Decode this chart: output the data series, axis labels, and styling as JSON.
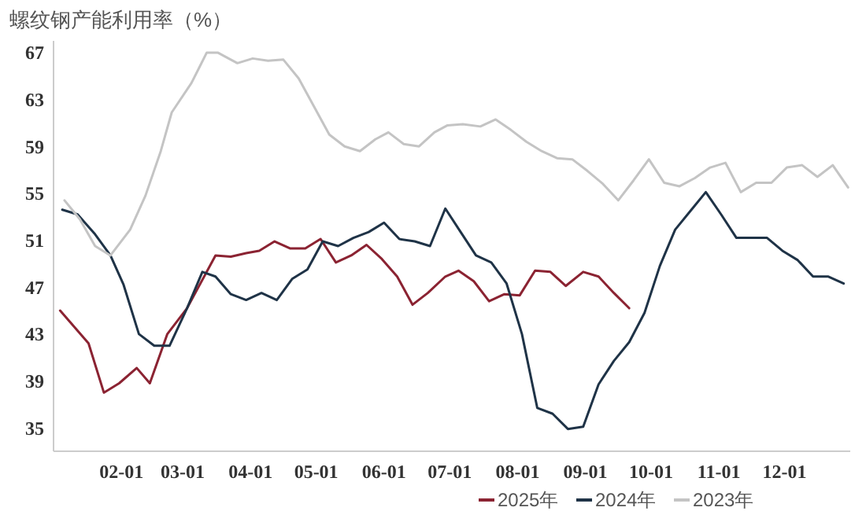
{
  "chart_data": {
    "type": "line",
    "title": "螺纹钢产能利用率（%）",
    "xlim": [
      "--01-01",
      "--12-31"
    ],
    "xticks": [
      {
        "value": "--02-01",
        "label": "02-01"
      },
      {
        "value": "--03-01",
        "label": "03-01"
      },
      {
        "value": "--04-01",
        "label": "04-01"
      },
      {
        "value": "--05-01",
        "label": "05-01"
      },
      {
        "value": "--06-01",
        "label": "06-01"
      },
      {
        "value": "--07-01",
        "label": "07-01"
      },
      {
        "value": "--08-01",
        "label": "08-01"
      },
      {
        "value": "--09-01",
        "label": "09-01"
      },
      {
        "value": "--10-01",
        "label": "10-01"
      },
      {
        "value": "--11-01",
        "label": "11-01"
      },
      {
        "value": "--12-01",
        "label": "12-01"
      }
    ],
    "ylim": [
      33,
      68
    ],
    "yticks": [
      35,
      39,
      43,
      47,
      51,
      55,
      59,
      63,
      67
    ],
    "grid": false,
    "legend": "bottom",
    "marker": "none",
    "line_style": "solid",
    "series": [
      {
        "name": "2025年",
        "color": "#8b2332",
        "x": [
          "--01-04",
          "--01-17",
          "--01-24",
          "--01-31",
          "--02-08",
          "--02-14",
          "--02-22",
          "--03-03",
          "--03-16",
          "--03-23",
          "--03-30",
          "--04-05",
          "--04-12",
          "--04-19",
          "--04-26",
          "--05-03",
          "--05-10",
          "--05-17",
          "--05-24",
          "--05-31",
          "--06-07",
          "--06-14",
          "--06-21",
          "--06-29",
          "--07-05",
          "--07-12",
          "--07-19",
          "--07-26",
          "--08-02",
          "--08-09",
          "--08-16",
          "--08-23",
          "--08-31",
          "--09-07",
          "--09-14",
          "--09-21"
        ],
        "values": [
          45.0,
          42.2,
          38.0,
          38.8,
          40.1,
          38.8,
          43.0,
          45.2,
          49.7,
          49.6,
          49.9,
          50.1,
          50.9,
          50.3,
          50.3,
          51.1,
          49.1,
          49.7,
          50.6,
          49.4,
          47.9,
          45.5,
          46.5,
          47.9,
          48.4,
          47.5,
          45.8,
          46.4,
          46.3,
          48.4,
          48.3,
          47.1,
          48.3,
          47.9,
          46.5,
          45.2
        ]
      },
      {
        "name": "2024年",
        "color": "#1f3347",
        "x": [
          "--01-05",
          "--01-12",
          "--01-20",
          "--01-27",
          "--02-02",
          "--02-09",
          "--02-16",
          "--02-23",
          "--03-03",
          "--03-10",
          "--03-16",
          "--03-23",
          "--03-30",
          "--04-06",
          "--04-13",
          "--04-20",
          "--04-27",
          "--05-04",
          "--05-11",
          "--05-18",
          "--05-25",
          "--06-01",
          "--06-08",
          "--06-15",
          "--06-22",
          "--06-29",
          "--07-06",
          "--07-13",
          "--07-20",
          "--07-27",
          "--08-03",
          "--08-10",
          "--08-17",
          "--08-24",
          "--08-31",
          "--09-07",
          "--09-14",
          "--09-21",
          "--09-28",
          "--10-05",
          "--10-12",
          "--10-19",
          "--10-26",
          "--11-02",
          "--11-09",
          "--11-16",
          "--11-23",
          "--11-30",
          "--12-07",
          "--12-14",
          "--12-21",
          "--12-28"
        ],
        "values": [
          53.6,
          53.2,
          51.5,
          49.7,
          47.2,
          43.0,
          42.0,
          42.0,
          45.2,
          48.3,
          47.9,
          46.4,
          45.9,
          46.5,
          45.9,
          47.7,
          48.5,
          50.9,
          50.5,
          51.2,
          51.7,
          52.5,
          51.1,
          50.9,
          50.5,
          53.7,
          51.7,
          49.7,
          49.1,
          47.3,
          43.0,
          36.7,
          36.2,
          34.9,
          35.1,
          38.7,
          40.7,
          42.3,
          44.8,
          48.8,
          51.9,
          53.5,
          55.1,
          53.2,
          51.2,
          51.2,
          51.2,
          50.1,
          49.3,
          47.9,
          47.9,
          47.3
        ]
      },
      {
        "name": "2023年",
        "color": "#c4c4c4",
        "x": [
          "--01-06",
          "--01-13",
          "--01-20",
          "--01-27",
          "--02-05",
          "--02-12",
          "--02-19",
          "--02-24",
          "--03-05",
          "--03-12",
          "--03-17",
          "--03-26",
          "--04-02",
          "--04-09",
          "--04-16",
          "--04-23",
          "--04-30",
          "--05-07",
          "--05-14",
          "--05-21",
          "--05-28",
          "--06-03",
          "--06-10",
          "--06-17",
          "--06-24",
          "--06-30",
          "--07-07",
          "--07-15",
          "--07-22",
          "--07-29",
          "--08-05",
          "--08-12",
          "--08-19",
          "--08-26",
          "--09-02",
          "--09-09",
          "--09-16",
          "--09-23",
          "--09-30",
          "--10-07",
          "--10-14",
          "--10-21",
          "--10-28",
          "--11-04",
          "--11-11",
          "--11-18",
          "--11-25",
          "--12-02",
          "--12-09",
          "--12-16",
          "--12-23",
          "--12-30"
        ],
        "values": [
          54.4,
          52.8,
          50.5,
          49.7,
          51.9,
          54.8,
          58.6,
          61.9,
          64.4,
          67.0,
          67.0,
          66.1,
          66.5,
          66.3,
          66.4,
          64.8,
          62.4,
          60.0,
          59.0,
          58.6,
          59.6,
          60.2,
          59.2,
          59.0,
          60.2,
          60.8,
          60.9,
          60.7,
          61.3,
          60.4,
          59.4,
          58.6,
          58.0,
          57.9,
          56.9,
          55.8,
          54.4,
          56.1,
          57.9,
          55.9,
          55.6,
          56.3,
          57.2,
          57.6,
          55.1,
          55.9,
          55.9,
          57.2,
          57.4,
          56.4,
          57.4,
          55.5
        ]
      }
    ]
  }
}
